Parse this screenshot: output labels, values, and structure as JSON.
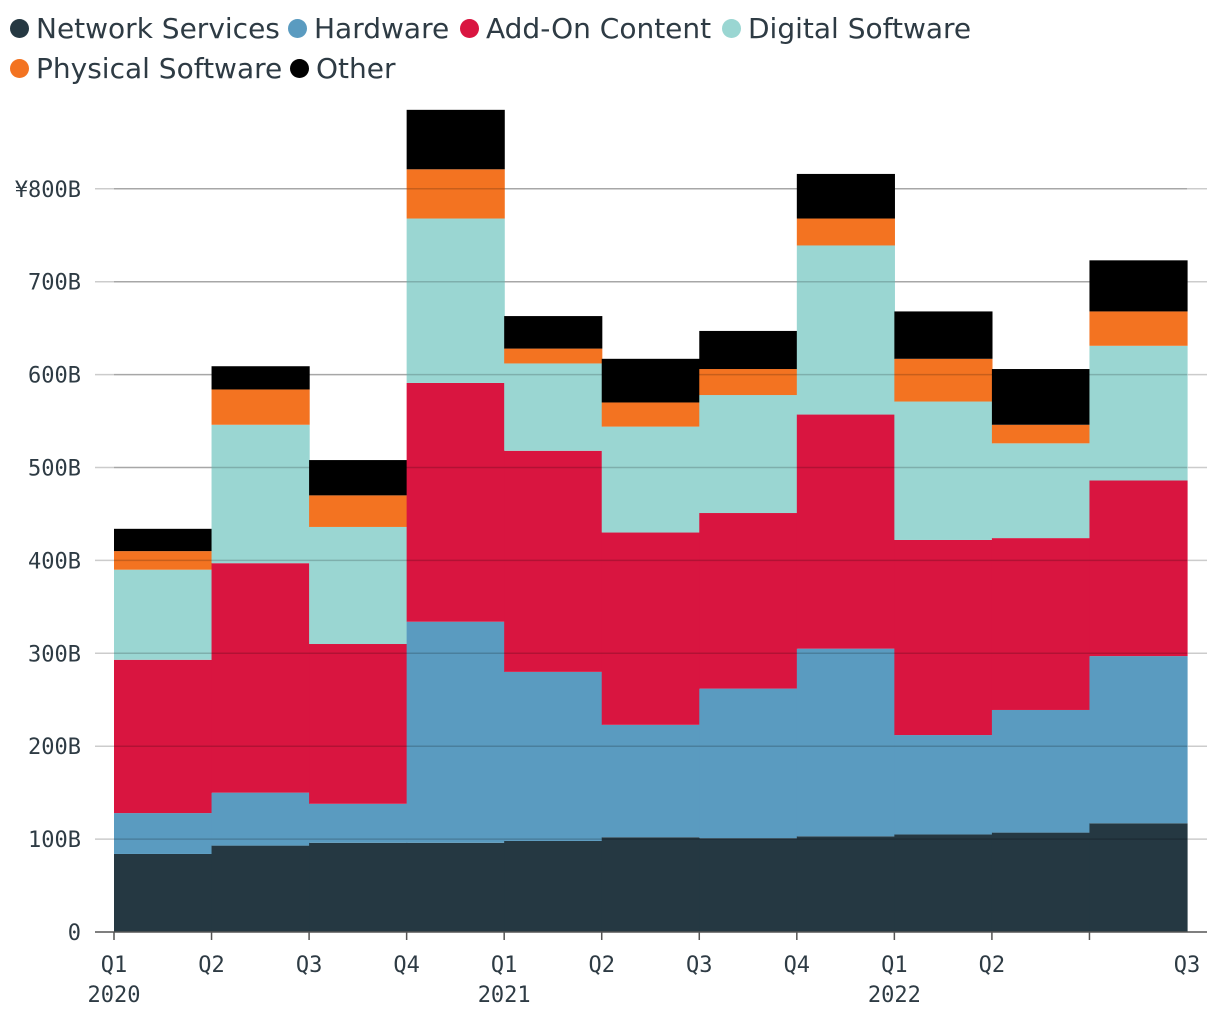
{
  "chart_data": {
    "type": "bar",
    "stacked": true,
    "currency_prefix": "¥",
    "categories": [
      "Q1 2020",
      "Q2 2020",
      "Q3 2020",
      "Q4 2020",
      "Q1 2021",
      "Q2 2021",
      "Q3 2021",
      "Q4 2021",
      "Q1 2022",
      "Q2 2022",
      "Q3 2022"
    ],
    "x_tick_labels": [
      {
        "quarter": "Q1",
        "year": "2020"
      },
      {
        "quarter": "Q2",
        "year": ""
      },
      {
        "quarter": "Q3",
        "year": ""
      },
      {
        "quarter": "Q4",
        "year": ""
      },
      {
        "quarter": "Q1",
        "year": "2021"
      },
      {
        "quarter": "Q2",
        "year": ""
      },
      {
        "quarter": "Q3",
        "year": ""
      },
      {
        "quarter": "Q4",
        "year": ""
      },
      {
        "quarter": "Q1",
        "year": "2022"
      },
      {
        "quarter": "Q2",
        "year": ""
      },
      {
        "quarter": "Q3",
        "year": ""
      }
    ],
    "y_tick_labels": [
      "0",
      "100B",
      "200B",
      "300B",
      "400B",
      "500B",
      "600B",
      "700B",
      "¥800B"
    ],
    "ylim": [
      0,
      880
    ],
    "ylabel": "",
    "xlabel": "",
    "grid": true,
    "legend_position": "top-left",
    "series": [
      {
        "name": "Network Services",
        "color": "#253842",
        "values": [
          84,
          93,
          96,
          96,
          98,
          102,
          101,
          103,
          105,
          107,
          117
        ]
      },
      {
        "name": "Hardware",
        "color": "#5a9bc0",
        "values": [
          44,
          57,
          42,
          238,
          182,
          121,
          161,
          202,
          107,
          132,
          180
        ]
      },
      {
        "name": "Add-On Content",
        "color": "#d91540",
        "values": [
          165,
          247,
          172,
          257,
          238,
          207,
          189,
          252,
          210,
          185,
          189
        ]
      },
      {
        "name": "Digital Software",
        "color": "#9ad6d2",
        "values": [
          97,
          149,
          126,
          177,
          94,
          114,
          127,
          182,
          149,
          102,
          145
        ]
      },
      {
        "name": "Physical Software",
        "color": "#f37321",
        "values": [
          20,
          38,
          34,
          53,
          16,
          26,
          28,
          29,
          46,
          20,
          37
        ]
      },
      {
        "name": "Other",
        "color": "#000000",
        "values": [
          24,
          25,
          38,
          64,
          35,
          47,
          41,
          48,
          51,
          60,
          55
        ]
      }
    ]
  }
}
